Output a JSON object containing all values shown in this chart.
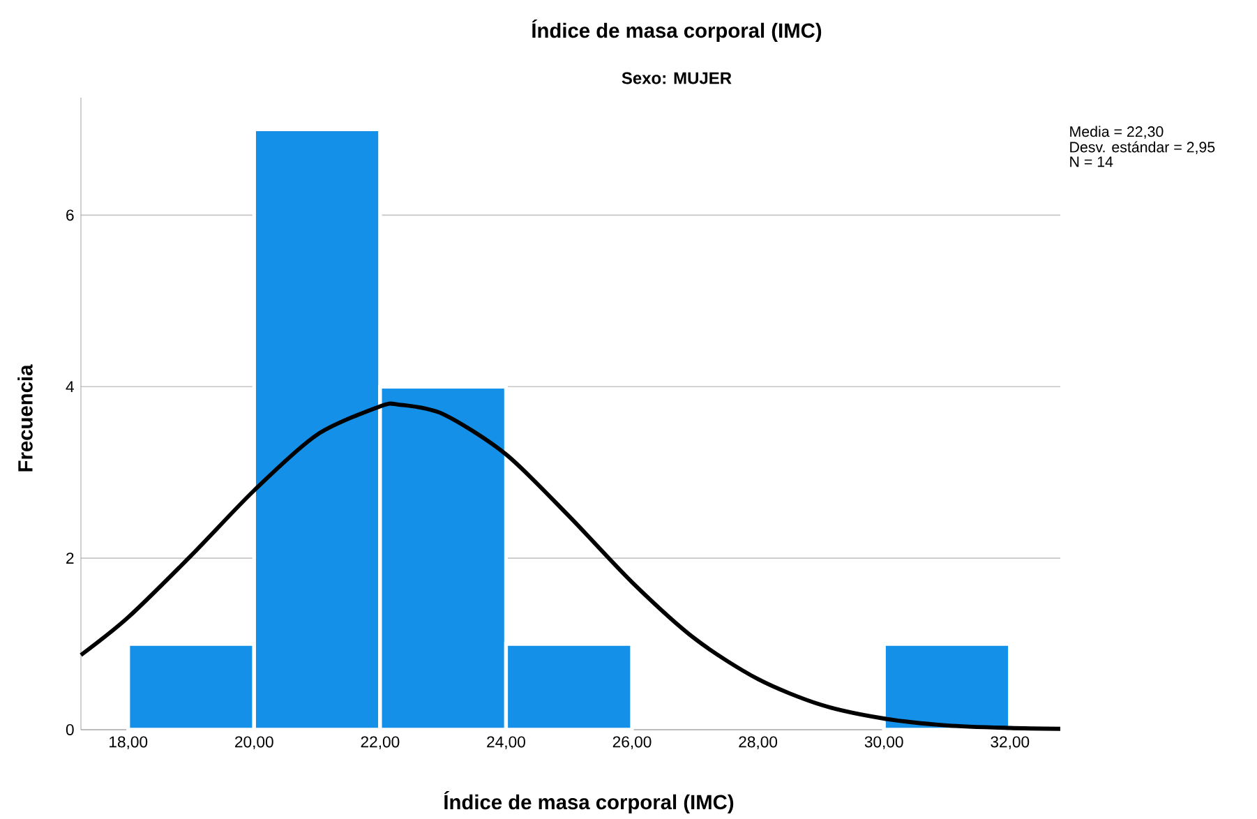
{
  "chart_data": {
    "type": "histogram",
    "title": "Índice de masa corporal (IMC)",
    "subtitle": "Sexo: MUJER",
    "xlabel": "Índice de masa corporal (IMC)",
    "ylabel": "Frecuencia",
    "bins": [
      18,
      20,
      22,
      24,
      26,
      28,
      30,
      32
    ],
    "values": [
      1,
      7,
      4,
      1,
      0,
      0,
      1
    ],
    "color": "#1490e8",
    "series": [
      {
        "type": "line",
        "color": "#000000",
        "x": [
          17.25,
          18,
          19,
          20,
          21,
          22,
          22.3,
          23,
          24,
          25,
          26,
          27,
          28,
          29,
          30,
          31,
          32,
          32.8
        ],
        "values": [
          0.87,
          1.31,
          2.03,
          2.79,
          3.44,
          3.77,
          3.79,
          3.68,
          3.21,
          2.49,
          1.72,
          1.06,
          0.59,
          0.29,
          0.13,
          0.05,
          0.02,
          0.01
        ]
      }
    ],
    "xlim": [
      17.25,
      32.8
    ],
    "ylim": [
      0,
      7.37
    ],
    "xticks": [
      {
        "value": 18,
        "label": "18,00"
      },
      {
        "value": 20,
        "label": "20,00"
      },
      {
        "value": 22,
        "label": "22,00"
      },
      {
        "value": 24,
        "label": "24,00"
      },
      {
        "value": 26,
        "label": "26,00"
      },
      {
        "value": 28,
        "label": "28,00"
      },
      {
        "value": 30,
        "label": "30,00"
      },
      {
        "value": 32,
        "label": "32,00"
      }
    ],
    "yticks": [
      0,
      2,
      4,
      6
    ],
    "grid": "y",
    "annotations": [
      "Media = 22,30",
      "Desv. estándar = 2,95",
      "N = 14"
    ]
  }
}
